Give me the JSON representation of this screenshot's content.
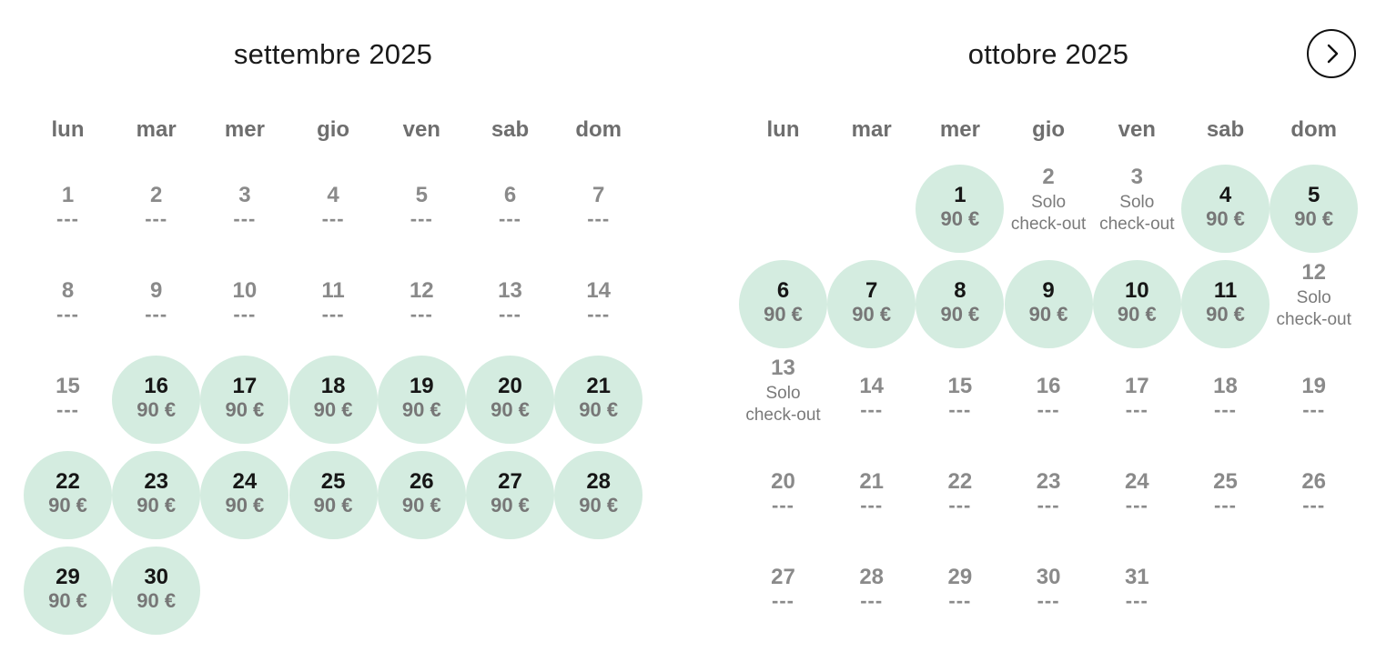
{
  "next_button_icon": "chevron-right-icon",
  "colors": {
    "available_bg": "#d4ece0",
    "text_dark": "#161616",
    "text_muted": "#8a8a8a"
  },
  "weekdays": [
    "lun",
    "mar",
    "mer",
    "gio",
    "ven",
    "sab",
    "dom"
  ],
  "months": [
    {
      "title": "settembre 2025",
      "start_weekday": 0,
      "days": [
        {
          "day": "1",
          "label": "---",
          "status": "unavailable"
        },
        {
          "day": "2",
          "label": "---",
          "status": "unavailable"
        },
        {
          "day": "3",
          "label": "---",
          "status": "unavailable"
        },
        {
          "day": "4",
          "label": "---",
          "status": "unavailable"
        },
        {
          "day": "5",
          "label": "---",
          "status": "unavailable"
        },
        {
          "day": "6",
          "label": "---",
          "status": "unavailable"
        },
        {
          "day": "7",
          "label": "---",
          "status": "unavailable"
        },
        {
          "day": "8",
          "label": "---",
          "status": "unavailable"
        },
        {
          "day": "9",
          "label": "---",
          "status": "unavailable"
        },
        {
          "day": "10",
          "label": "---",
          "status": "unavailable"
        },
        {
          "day": "11",
          "label": "---",
          "status": "unavailable"
        },
        {
          "day": "12",
          "label": "---",
          "status": "unavailable"
        },
        {
          "day": "13",
          "label": "---",
          "status": "unavailable"
        },
        {
          "day": "14",
          "label": "---",
          "status": "unavailable"
        },
        {
          "day": "15",
          "label": "---",
          "status": "unavailable"
        },
        {
          "day": "16",
          "label": "90 €",
          "status": "available"
        },
        {
          "day": "17",
          "label": "90 €",
          "status": "available"
        },
        {
          "day": "18",
          "label": "90 €",
          "status": "available"
        },
        {
          "day": "19",
          "label": "90 €",
          "status": "available"
        },
        {
          "day": "20",
          "label": "90 €",
          "status": "available"
        },
        {
          "day": "21",
          "label": "90 €",
          "status": "available"
        },
        {
          "day": "22",
          "label": "90 €",
          "status": "available"
        },
        {
          "day": "23",
          "label": "90 €",
          "status": "available"
        },
        {
          "day": "24",
          "label": "90 €",
          "status": "available"
        },
        {
          "day": "25",
          "label": "90 €",
          "status": "available"
        },
        {
          "day": "26",
          "label": "90 €",
          "status": "available"
        },
        {
          "day": "27",
          "label": "90 €",
          "status": "available"
        },
        {
          "day": "28",
          "label": "90 €",
          "status": "available"
        },
        {
          "day": "29",
          "label": "90 €",
          "status": "available"
        },
        {
          "day": "30",
          "label": "90 €",
          "status": "available"
        }
      ]
    },
    {
      "title": "ottobre 2025",
      "start_weekday": 2,
      "days": [
        {
          "day": "1",
          "label": "90 €",
          "status": "available"
        },
        {
          "day": "2",
          "label": "Solo check-out",
          "status": "checkout"
        },
        {
          "day": "3",
          "label": "Solo check-out",
          "status": "checkout"
        },
        {
          "day": "4",
          "label": "90 €",
          "status": "available"
        },
        {
          "day": "5",
          "label": "90 €",
          "status": "available"
        },
        {
          "day": "6",
          "label": "90 €",
          "status": "available"
        },
        {
          "day": "7",
          "label": "90 €",
          "status": "available"
        },
        {
          "day": "8",
          "label": "90 €",
          "status": "available"
        },
        {
          "day": "9",
          "label": "90 €",
          "status": "available"
        },
        {
          "day": "10",
          "label": "90 €",
          "status": "available"
        },
        {
          "day": "11",
          "label": "90 €",
          "status": "available"
        },
        {
          "day": "12",
          "label": "Solo check-out",
          "status": "checkout"
        },
        {
          "day": "13",
          "label": "Solo check-out",
          "status": "checkout"
        },
        {
          "day": "14",
          "label": "---",
          "status": "unavailable"
        },
        {
          "day": "15",
          "label": "---",
          "status": "unavailable"
        },
        {
          "day": "16",
          "label": "---",
          "status": "unavailable"
        },
        {
          "day": "17",
          "label": "---",
          "status": "unavailable"
        },
        {
          "day": "18",
          "label": "---",
          "status": "unavailable"
        },
        {
          "day": "19",
          "label": "---",
          "status": "unavailable"
        },
        {
          "day": "20",
          "label": "---",
          "status": "unavailable"
        },
        {
          "day": "21",
          "label": "---",
          "status": "unavailable"
        },
        {
          "day": "22",
          "label": "---",
          "status": "unavailable"
        },
        {
          "day": "23",
          "label": "---",
          "status": "unavailable"
        },
        {
          "day": "24",
          "label": "---",
          "status": "unavailable"
        },
        {
          "day": "25",
          "label": "---",
          "status": "unavailable"
        },
        {
          "day": "26",
          "label": "---",
          "status": "unavailable"
        },
        {
          "day": "27",
          "label": "---",
          "status": "unavailable"
        },
        {
          "day": "28",
          "label": "---",
          "status": "unavailable"
        },
        {
          "day": "29",
          "label": "---",
          "status": "unavailable"
        },
        {
          "day": "30",
          "label": "---",
          "status": "unavailable"
        },
        {
          "day": "31",
          "label": "---",
          "status": "unavailable"
        }
      ]
    }
  ]
}
